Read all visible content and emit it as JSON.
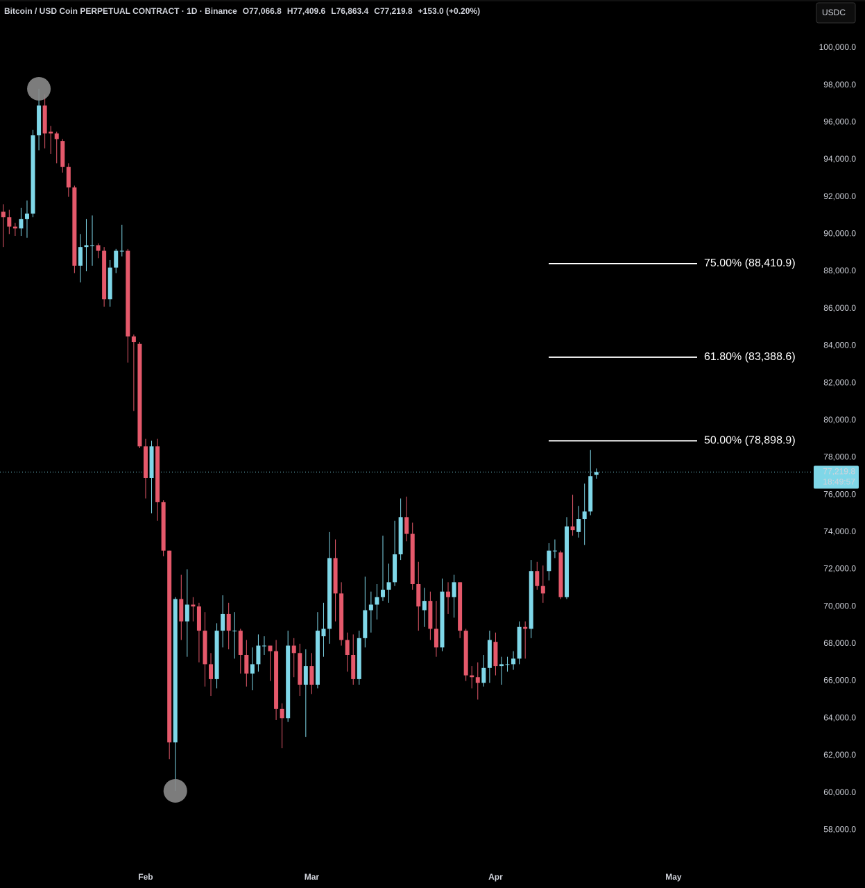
{
  "toolbar": {
    "currency": "USDC"
  },
  "chart_data": {
    "type": "candlestick",
    "title": "Bitcoin / USD Coin PERPETUAL CONTRACT · 1D · Binance",
    "ohlc_labels": [
      "O77,066.8",
      "H77,409.6",
      "L76,863.4",
      "C77,219.8",
      "+153.0 (+0.20%)"
    ],
    "categories": [
      null,
      null,
      null,
      null,
      null,
      null,
      null,
      null,
      null,
      null,
      null,
      null,
      null,
      null,
      null,
      null,
      null,
      null,
      null,
      null,
      null,
      null,
      null,
      null,
      "Feb",
      null,
      null,
      null,
      null,
      null,
      null,
      null,
      null,
      null,
      null,
      null,
      null,
      null,
      null,
      null,
      null,
      null,
      null,
      null,
      null,
      null,
      null,
      null,
      null,
      null,
      null,
      null,
      "Mar",
      null,
      null,
      null,
      null,
      null,
      null,
      null,
      null,
      null,
      null,
      null,
      null,
      null,
      null,
      null,
      null,
      null,
      null,
      null,
      null,
      null,
      null,
      null,
      null,
      null,
      null,
      null,
      null,
      null,
      null,
      "Apr",
      null,
      null,
      null,
      null,
      null,
      null,
      null,
      null,
      null,
      null,
      null,
      null,
      null,
      null,
      null,
      null,
      null,
      null,
      null,
      null,
      null,
      null,
      null,
      null,
      null,
      null,
      null,
      null,
      null,
      "May"
    ],
    "open": [
      91200,
      90900,
      90400,
      90300,
      90800,
      91100,
      95300,
      96900,
      95500,
      95400,
      95000,
      93600,
      92500,
      88300,
      89300,
      89400,
      89400,
      89100,
      86500,
      88200,
      89100,
      89100,
      84500,
      84100,
      78600,
      76900,
      78600,
      75600,
      73000,
      62700,
      70400,
      69200,
      70100,
      70000,
      68700,
      66900,
      66100,
      68700,
      69600,
      68700,
      68700,
      67400,
      66400,
      66900,
      67900,
      67900,
      67600,
      64500,
      64000,
      67900,
      67500,
      65800,
      66800,
      65800,
      68400,
      68800,
      72600,
      70700,
      68200,
      67400,
      66100,
      68300,
      69800,
      70100,
      70500,
      70900,
      71300,
      72800,
      74800,
      73900,
      71200,
      69800,
      70300,
      68800,
      67800,
      70800,
      70500,
      71300,
      68700,
      66300,
      66200,
      65900,
      66700,
      68100,
      66800,
      66900,
      66900,
      67200,
      68900,
      68800,
      71900,
      71100,
      71900,
      73000,
      72900,
      70500,
      74300,
      74000,
      74700,
      75100,
      77066.8,
      null,
      null,
      null,
      null,
      null,
      null,
      null,
      null,
      null,
      null,
      null,
      null,
      null
    ],
    "high": [
      91600,
      91300,
      90600,
      91400,
      91800,
      95600,
      97800,
      97500,
      95800,
      95500,
      95100,
      93800,
      92600,
      90000,
      90800,
      91000,
      89500,
      89300,
      88600,
      89200,
      90500,
      89200,
      84600,
      84200,
      79000,
      78900,
      79000,
      75700,
      73000,
      70500,
      71700,
      72000,
      70500,
      70200,
      69700,
      67500,
      69100,
      70600,
      70200,
      69700,
      68800,
      68200,
      67800,
      68500,
      68400,
      67900,
      68200,
      64800,
      68700,
      68300,
      68000,
      67700,
      67500,
      69700,
      70200,
      74000,
      73600,
      71300,
      68600,
      68500,
      68700,
      71600,
      70800,
      71200,
      73800,
      72300,
      74600,
      75800,
      75900,
      74500,
      72400,
      71000,
      70800,
      70300,
      71500,
      71300,
      71700,
      71300,
      68800,
      66800,
      67000,
      67400,
      68700,
      68600,
      67300,
      67300,
      67600,
      69200,
      69200,
      72500,
      72400,
      72200,
      73400,
      73600,
      73000,
      74800,
      76000,
      75400,
      76600,
      78400,
      77409.6,
      null,
      null,
      null,
      null,
      null,
      null,
      null,
      null,
      null,
      null,
      null,
      null,
      null
    ],
    "low": [
      89300,
      90000,
      89900,
      89900,
      89800,
      90900,
      94500,
      94600,
      94300,
      93800,
      93300,
      92000,
      87900,
      87400,
      88000,
      88300,
      88700,
      86100,
      86100,
      87900,
      88800,
      83100,
      80500,
      78500,
      75800,
      75000,
      74600,
      72700,
      61800,
      60100,
      68200,
      67300,
      69200,
      67000,
      65700,
      65200,
      65600,
      67800,
      67700,
      67200,
      66400,
      65700,
      65500,
      66500,
      67400,
      66000,
      63900,
      62400,
      63800,
      66200,
      65200,
      63000,
      65300,
      65600,
      67300,
      68000,
      69200,
      67900,
      66500,
      65800,
      65800,
      67800,
      68600,
      69300,
      70300,
      70200,
      71100,
      72500,
      73500,
      70900,
      68700,
      68900,
      68200,
      67300,
      67600,
      69600,
      69400,
      68300,
      66000,
      65600,
      65000,
      65700,
      65900,
      66300,
      65800,
      66500,
      66600,
      66900,
      67200,
      68300,
      70900,
      70200,
      71400,
      72600,
      70400,
      70400,
      73800,
      73700,
      73300,
      74900,
      76863.4,
      null,
      null,
      null,
      null,
      null,
      null,
      null,
      null,
      null,
      null,
      null,
      null,
      null
    ],
    "close": [
      90900,
      90400,
      90300,
      90800,
      91100,
      95300,
      96900,
      95400,
      95400,
      95100,
      93600,
      92500,
      88300,
      89300,
      89400,
      89400,
      89100,
      86500,
      88200,
      89100,
      89100,
      84500,
      84200,
      78600,
      76900,
      78600,
      75600,
      73000,
      62700,
      70400,
      69200,
      70100,
      70000,
      68700,
      66900,
      66100,
      68700,
      69600,
      68700,
      68700,
      67400,
      66400,
      66900,
      67900,
      67900,
      67600,
      64500,
      64000,
      67900,
      67500,
      65800,
      66800,
      65800,
      68700,
      68800,
      72600,
      70700,
      68200,
      67400,
      66100,
      68300,
      69800,
      70100,
      70500,
      70900,
      71300,
      72800,
      74800,
      73900,
      71200,
      70000,
      70300,
      68800,
      67800,
      70800,
      70500,
      71300,
      68700,
      66300,
      66200,
      65900,
      66700,
      68200,
      66800,
      66900,
      66900,
      67200,
      68900,
      68800,
      71900,
      71100,
      70700,
      73000,
      73000,
      70500,
      74300,
      74100,
      74700,
      75100,
      77000,
      77219.8,
      null,
      null,
      null,
      null,
      null,
      null,
      null,
      null,
      null,
      null,
      null,
      null,
      null
    ],
    "up_color": "#7fd7e8",
    "down_color": "#e5596b",
    "ylim": [
      56000,
      101450
    ],
    "yticks": [
      {
        "value": 58000,
        "label": "58,000.0"
      },
      {
        "value": 60000,
        "label": "60,000.0"
      },
      {
        "value": 62000,
        "label": "62,000.0"
      },
      {
        "value": 64000,
        "label": "64,000.0"
      },
      {
        "value": 66000,
        "label": "66,000.0"
      },
      {
        "value": 68000,
        "label": "68,000.0"
      },
      {
        "value": 70000,
        "label": "70,000.0"
      },
      {
        "value": 72000,
        "label": "72,000.0"
      },
      {
        "value": 74000,
        "label": "74,000.0"
      },
      {
        "value": 76000,
        "label": "76,000.0"
      },
      {
        "value": 78000,
        "label": "78,000.0"
      },
      {
        "value": 80000,
        "label": "80,000.0"
      },
      {
        "value": 82000,
        "label": "82,000.0"
      },
      {
        "value": 84000,
        "label": "84,000.0"
      },
      {
        "value": 86000,
        "label": "86,000.0"
      },
      {
        "value": 88000,
        "label": "88,000.0"
      },
      {
        "value": 90000,
        "label": "90,000.0"
      },
      {
        "value": 92000,
        "label": "92,000.0"
      },
      {
        "value": 94000,
        "label": "94,000.0"
      },
      {
        "value": 96000,
        "label": "96,000.0"
      },
      {
        "value": 98000,
        "label": "98,000.0"
      },
      {
        "value": 100000,
        "label": "100,000.0"
      }
    ],
    "fib_levels": [
      {
        "value": 88410.9,
        "label": "75.00% (88,410.9)"
      },
      {
        "value": 83388.6,
        "label": "61.80% (83,388.6)"
      },
      {
        "value": 78898.9,
        "label": "50.00% (78,898.9)"
      }
    ],
    "last_price": {
      "value": 77219.8,
      "label": "77,219.8"
    },
    "countdown": "18:49:57"
  }
}
